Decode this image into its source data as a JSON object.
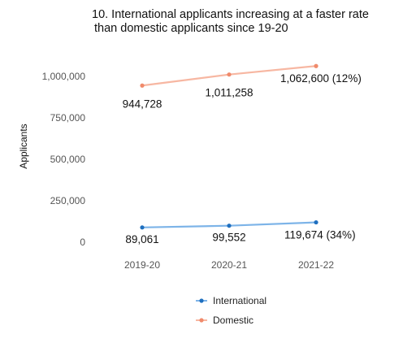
{
  "chart_data": {
    "type": "line",
    "title_lines": [
      "10. International applicants increasing at a faster rate",
      "than domestic applicants since 19-20"
    ],
    "ylabel": "Applicants",
    "xlabel": "",
    "categories": [
      "2019-20",
      "2020-21",
      "2021-22"
    ],
    "ylim": [
      0,
      1000000
    ],
    "yticks": [
      0,
      250000,
      500000,
      750000,
      1000000
    ],
    "ytick_labels": [
      "0",
      "250,000",
      "500,000",
      "750,000",
      "1,000,000"
    ],
    "grid": false,
    "legend_position": "bottom",
    "series": [
      {
        "name": "International",
        "color": "#1f6fbf",
        "line_color": "#7db4e8",
        "values": [
          89061,
          99552,
          119674
        ],
        "labels": [
          "89,061",
          "99,552",
          "119,674 (34%)"
        ]
      },
      {
        "name": "Domestic",
        "color": "#f08a6b",
        "line_color": "#f7b7a2",
        "values": [
          944728,
          1011258,
          1062600
        ],
        "labels": [
          "944,728",
          "1,011,258",
          "1,062,600 (12%)"
        ]
      }
    ]
  }
}
